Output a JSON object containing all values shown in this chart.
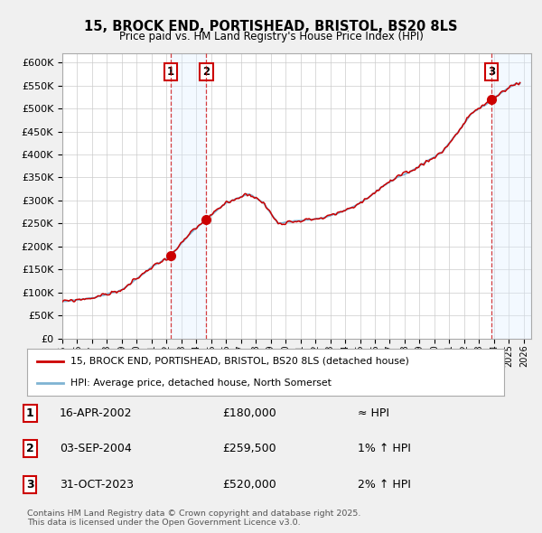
{
  "title": "15, BROCK END, PORTISHEAD, BRISTOL, BS20 8LS",
  "subtitle": "Price paid vs. HM Land Registry's House Price Index (HPI)",
  "hpi_color": "#7fb3d3",
  "price_color": "#cc0000",
  "background_color": "#f0f0f0",
  "plot_bg_color": "#ffffff",
  "grid_color": "#cccccc",
  "ylim": [
    0,
    620000
  ],
  "yticks": [
    0,
    50000,
    100000,
    150000,
    200000,
    250000,
    300000,
    350000,
    400000,
    450000,
    500000,
    550000,
    600000
  ],
  "xlim_start": 1995.0,
  "xlim_end": 2026.0,
  "sale_dates_num": [
    2002.29,
    2004.67,
    2023.83
  ],
  "sale_prices": [
    180000,
    259500,
    520000
  ],
  "sale_labels": [
    "1",
    "2",
    "3"
  ],
  "legend_entries": [
    "15, BROCK END, PORTISHEAD, BRISTOL, BS20 8LS (detached house)",
    "HPI: Average price, detached house, North Somerset"
  ],
  "table_rows": [
    {
      "num": "1",
      "date": "16-APR-2002",
      "price": "£180,000",
      "hpi": "≈ HPI"
    },
    {
      "num": "2",
      "date": "03-SEP-2004",
      "price": "£259,500",
      "hpi": "1% ↑ HPI"
    },
    {
      "num": "3",
      "date": "31-OCT-2023",
      "price": "£520,000",
      "hpi": "2% ↑ HPI"
    }
  ],
  "footer": "Contains HM Land Registry data © Crown copyright and database right 2025.\nThis data is licensed under the Open Government Licence v3.0.",
  "shaded_color": "#ddeeff",
  "shaded_alpha": 0.35
}
